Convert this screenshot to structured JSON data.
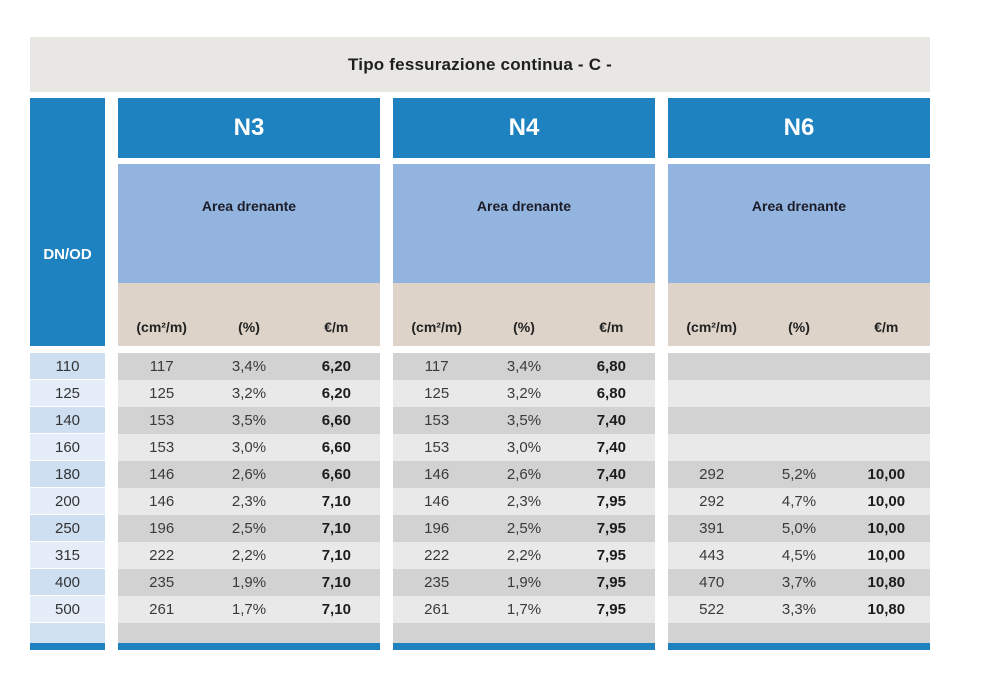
{
  "title": "Tipo fessurazione continua - C -",
  "dn_header": "DN/OD",
  "area_label": "Area drenante",
  "col_headers": [
    "(cm²/m)",
    "(%)",
    "€/m"
  ],
  "dn_values": [
    "110",
    "125",
    "140",
    "160",
    "180",
    "200",
    "250",
    "315",
    "400",
    "500"
  ],
  "groups": [
    {
      "name": "N3",
      "rows": [
        [
          "117",
          "3,4%",
          "6,20"
        ],
        [
          "125",
          "3,2%",
          "6,20"
        ],
        [
          "153",
          "3,5%",
          "6,60"
        ],
        [
          "153",
          "3,0%",
          "6,60"
        ],
        [
          "146",
          "2,6%",
          "6,60"
        ],
        [
          "146",
          "2,3%",
          "7,10"
        ],
        [
          "196",
          "2,5%",
          "7,10"
        ],
        [
          "222",
          "2,2%",
          "7,10"
        ],
        [
          "235",
          "1,9%",
          "7,10"
        ],
        [
          "261",
          "1,7%",
          "7,10"
        ]
      ]
    },
    {
      "name": "N4",
      "rows": [
        [
          "117",
          "3,4%",
          "6,80"
        ],
        [
          "125",
          "3,2%",
          "6,80"
        ],
        [
          "153",
          "3,5%",
          "7,40"
        ],
        [
          "153",
          "3,0%",
          "7,40"
        ],
        [
          "146",
          "2,6%",
          "7,40"
        ],
        [
          "146",
          "2,3%",
          "7,95"
        ],
        [
          "196",
          "2,5%",
          "7,95"
        ],
        [
          "222",
          "2,2%",
          "7,95"
        ],
        [
          "235",
          "1,9%",
          "7,95"
        ],
        [
          "261",
          "1,7%",
          "7,95"
        ]
      ]
    },
    {
      "name": "N6",
      "rows": [
        [
          "",
          "",
          ""
        ],
        [
          "",
          "",
          ""
        ],
        [
          "",
          "",
          ""
        ],
        [
          "",
          "",
          ""
        ],
        [
          "292",
          "5,2%",
          "10,00"
        ],
        [
          "292",
          "4,7%",
          "10,00"
        ],
        [
          "391",
          "5,0%",
          "10,00"
        ],
        [
          "443",
          "4,5%",
          "10,00"
        ],
        [
          "470",
          "3,7%",
          "10,80"
        ],
        [
          "522",
          "3,3%",
          "10,80"
        ]
      ]
    }
  ],
  "colors": {
    "header_blue": "#1f82c0",
    "area_blue": "#92b4de",
    "subhead_beige": "#ddd3c8",
    "title_gray": "#e8e7e4",
    "row_dark": "#d2d2d2",
    "row_light": "#e9e9e9",
    "dn_row_dark": "#cddff1",
    "dn_row_light": "#e5eef8"
  }
}
